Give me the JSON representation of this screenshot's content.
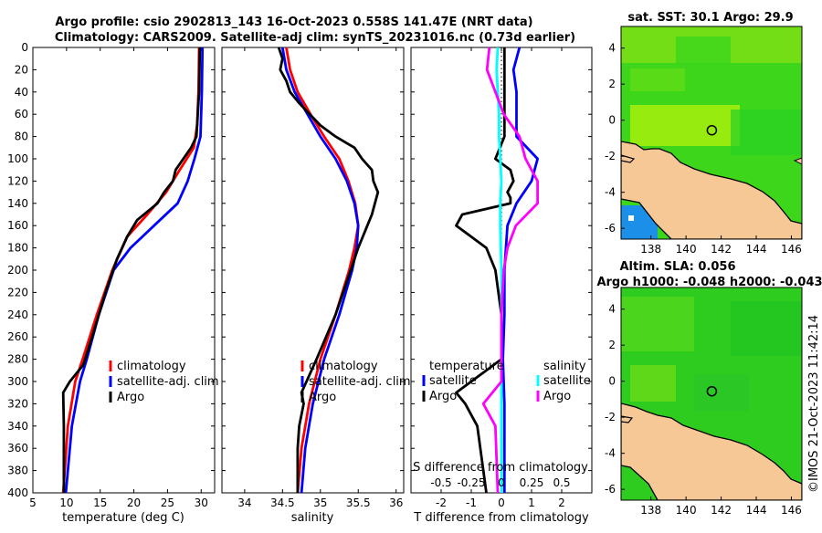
{
  "title": {
    "line1": "Argo profile: csio 2902813_143 16-Oct-2023 0.558S 141.47E (NRT data)",
    "line2": "Climatology: CARS2009. Satellite-adj clim: synTS_20231016.nc (0.73d earlier)"
  },
  "colors": {
    "climatology": "#ff0000",
    "satellite": "#0000ff",
    "argo": "#000000",
    "salinity_diff": "#ff00ff",
    "salinity_sat_diff": "#00ffff",
    "land": "#f5c896"
  },
  "chart_data": [
    {
      "type": "line",
      "name": "temperature_profile",
      "xlabel": "temperature (deg C)",
      "xlim": [
        5,
        32
      ],
      "xticks": [
        "5",
        "10",
        "15",
        "20",
        "25",
        "30"
      ],
      "xtick_values": [
        5,
        10,
        15,
        20,
        25,
        30
      ],
      "ylim": [
        0,
        400
      ],
      "yticks": [
        "0",
        "20",
        "40",
        "60",
        "80",
        "100",
        "120",
        "140",
        "160",
        "180",
        "200",
        "220",
        "240",
        "260",
        "280",
        "300",
        "320",
        "340",
        "360",
        "380",
        "400"
      ],
      "ytick_values": [
        0,
        20,
        40,
        60,
        80,
        100,
        120,
        140,
        160,
        180,
        200,
        220,
        240,
        260,
        280,
        300,
        320,
        340,
        360,
        380,
        400
      ],
      "legend": [
        "climatology",
        "satellite-adj. clim",
        "Argo"
      ],
      "series": [
        {
          "name": "climatology",
          "depth": [
            0,
            40,
            70,
            90,
            110,
            130,
            150,
            170,
            200,
            240,
            280,
            300,
            340,
            400
          ],
          "values": [
            29.7,
            29.6,
            29.4,
            28.9,
            26.8,
            24.8,
            22.0,
            19.0,
            16.8,
            14.5,
            12.4,
            11.3,
            10.2,
            9.5
          ]
        },
        {
          "name": "satellite-adj. clim",
          "depth": [
            0,
            40,
            80,
            100,
            120,
            140,
            160,
            180,
            200,
            240,
            280,
            300,
            340,
            400
          ],
          "values": [
            30.2,
            30.1,
            29.9,
            29.0,
            28.0,
            26.5,
            23.0,
            19.5,
            17.0,
            14.8,
            13.0,
            12.0,
            10.8,
            9.9
          ]
        },
        {
          "name": "Argo",
          "depth": [
            0,
            40,
            80,
            90,
            110,
            120,
            130,
            140,
            155,
            170,
            190,
            220,
            260,
            285,
            300,
            310,
            340,
            400
          ],
          "values": [
            29.8,
            29.7,
            29.3,
            28.5,
            26.2,
            25.8,
            24.5,
            23.5,
            20.5,
            19.0,
            17.5,
            15.8,
            13.8,
            12.5,
            10.5,
            9.5,
            9.6,
            9.6
          ]
        }
      ]
    },
    {
      "type": "line",
      "name": "salinity_profile",
      "xlabel": "salinity",
      "xlim": [
        33.7,
        36.1
      ],
      "xticks": [
        "34",
        "34.5",
        "35",
        "35.5",
        "36"
      ],
      "xtick_values": [
        34,
        34.5,
        35,
        35.5,
        36
      ],
      "ylim": [
        0,
        400
      ],
      "legend": [
        "climatology",
        "satellite-adj. clim",
        "Argo"
      ],
      "series": [
        {
          "name": "climatology",
          "depth": [
            0,
            20,
            40,
            60,
            80,
            100,
            120,
            140,
            160,
            180,
            200,
            240,
            280,
            320,
            360,
            400
          ],
          "values": [
            34.55,
            34.6,
            34.7,
            34.87,
            35.05,
            35.25,
            35.37,
            35.46,
            35.5,
            35.45,
            35.38,
            35.2,
            35.0,
            34.85,
            34.75,
            34.7
          ]
        },
        {
          "name": "satellite-adj. clim",
          "depth": [
            0,
            20,
            40,
            60,
            80,
            100,
            120,
            140,
            160,
            180,
            200,
            240,
            280,
            320,
            360,
            400
          ],
          "values": [
            34.5,
            34.55,
            34.66,
            34.83,
            35.0,
            35.2,
            35.35,
            35.45,
            35.5,
            35.48,
            35.42,
            35.25,
            35.05,
            34.9,
            34.8,
            34.75
          ]
        },
        {
          "name": "Argo",
          "depth": [
            0,
            10,
            20,
            30,
            40,
            50,
            60,
            70,
            80,
            90,
            100,
            110,
            120,
            130,
            140,
            150,
            160,
            180,
            200,
            240,
            280,
            310,
            320,
            340,
            360,
            400
          ],
          "values": [
            34.45,
            34.5,
            34.47,
            34.55,
            34.6,
            34.72,
            34.86,
            35.0,
            35.2,
            35.45,
            35.55,
            35.68,
            35.7,
            35.76,
            35.72,
            35.68,
            35.62,
            35.5,
            35.4,
            35.2,
            34.95,
            34.75,
            34.78,
            34.72,
            34.7,
            34.7
          ]
        }
      ]
    },
    {
      "type": "line",
      "name": "difference_from_climatology",
      "xlabel": "T difference from climatology",
      "xlim": [
        -3,
        3
      ],
      "xticks": [
        "-2",
        "-1",
        "0",
        "1",
        "2"
      ],
      "xtick_values": [
        -2,
        -1,
        0,
        1,
        2
      ],
      "s_axis_label": "S difference from climatology",
      "s_xticks": [
        "-0.5",
        "-0.25",
        "0",
        "0.25",
        "0.5"
      ],
      "s_xtick_values": [
        -0.5,
        -0.25,
        0,
        0.25,
        0.5
      ],
      "ylim": [
        0,
        400
      ],
      "legend_temperature": [
        "temperature",
        "satellite",
        "Argo"
      ],
      "legend_salinity": [
        "salinity",
        "satellite",
        "Argo"
      ],
      "series": [
        {
          "name": "temperature satellite",
          "depth": [
            0,
            20,
            40,
            60,
            80,
            100,
            120,
            140,
            160,
            200,
            240,
            280,
            320,
            360,
            400
          ],
          "values": [
            0.6,
            0.4,
            0.5,
            0.5,
            0.5,
            1.2,
            1.0,
            0.5,
            0.2,
            0.1,
            0.1,
            0.05,
            0.1,
            0.1,
            0.1
          ]
        },
        {
          "name": "temperature Argo",
          "depth": [
            0,
            20,
            40,
            60,
            80,
            100,
            110,
            120,
            130,
            135,
            140,
            150,
            160,
            180,
            200,
            240,
            280,
            300,
            310,
            320,
            340,
            380,
            400
          ],
          "values": [
            0.1,
            0.1,
            0.1,
            0.1,
            0.1,
            -0.2,
            0.3,
            0.4,
            0.2,
            0.3,
            0.3,
            -1.3,
            -1.5,
            -0.5,
            -0.2,
            0.0,
            0.0,
            -1.0,
            -1.5,
            -1.2,
            -0.8,
            -0.6,
            -0.5
          ]
        },
        {
          "name": "salinity satellite",
          "depth": [
            0,
            20,
            40,
            60,
            80,
            100,
            120,
            140,
            160,
            200,
            240,
            280,
            320,
            360,
            400
          ],
          "values": [
            -0.03,
            -0.04,
            -0.03,
            -0.02,
            -0.02,
            -0.01,
            0.0,
            -0.01,
            -0.01,
            0.0,
            0.0,
            0.0,
            0.0,
            0.0,
            0.0
          ]
        },
        {
          "name": "salinity Argo",
          "depth": [
            0,
            20,
            40,
            60,
            80,
            100,
            120,
            140,
            160,
            180,
            200,
            240,
            280,
            300,
            320,
            340,
            400
          ],
          "values": [
            -0.1,
            -0.12,
            -0.05,
            0.02,
            0.15,
            0.2,
            0.3,
            0.3,
            0.12,
            0.05,
            0.02,
            0.0,
            0.0,
            0.0,
            -0.15,
            -0.05,
            -0.03
          ]
        }
      ]
    },
    {
      "type": "heatmap",
      "name": "sst_map",
      "title": "sat. SST: 30.1 Argo: 29.9",
      "xticks": [
        "138",
        "140",
        "142",
        "144",
        "146"
      ],
      "xtick_values": [
        138,
        140,
        142,
        144,
        146
      ],
      "yticks": [
        "4",
        "2",
        "0",
        "-2",
        "-4",
        "-6"
      ],
      "ytick_values": [
        4,
        2,
        0,
        -2,
        -4,
        -6
      ],
      "xlim": [
        136.3,
        146.6
      ],
      "ylim": [
        -6.6,
        5.2
      ],
      "argo_position": [
        141.47,
        -0.558
      ]
    },
    {
      "type": "heatmap",
      "name": "sla_map",
      "title_line1": "Altim. SLA: 0.056",
      "title_line2": "Argo h1000: -0.048 h2000: -0.043",
      "xticks": [
        "138",
        "140",
        "142",
        "144",
        "146"
      ],
      "xtick_values": [
        138,
        140,
        142,
        144,
        146
      ],
      "yticks": [
        "4",
        "2",
        "0",
        "-2",
        "-4",
        "-6"
      ],
      "ytick_values": [
        4,
        2,
        0,
        -2,
        -4,
        -6
      ],
      "xlim": [
        136.3,
        146.6
      ],
      "ylim": [
        -6.6,
        5.2
      ],
      "argo_position": [
        141.47,
        -0.558
      ]
    }
  ],
  "credit": "©IMOS 21-Oct-2023 11:42:14"
}
